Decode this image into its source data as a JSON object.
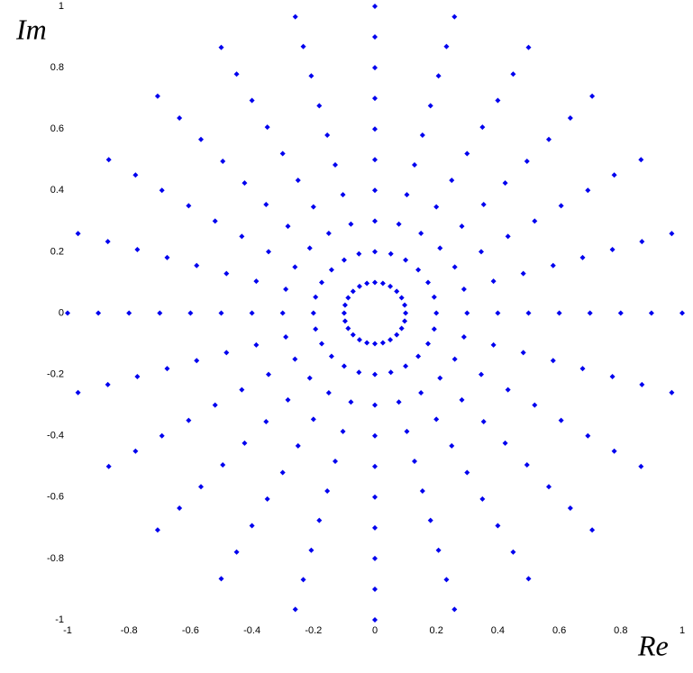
{
  "chart_data": {
    "type": "scatter",
    "x_label": "Re",
    "y_label": "Im",
    "color": "#0000ee",
    "xlim": [
      -1,
      1
    ],
    "ylim": [
      -1,
      1
    ],
    "xticks": [
      -1,
      -0.8,
      -0.6,
      -0.4,
      -0.2,
      0,
      0.2,
      0.4,
      0.6,
      0.8,
      1
    ],
    "yticks": [
      -1,
      -0.8,
      -0.6,
      -0.4,
      -0.2,
      0,
      0.2,
      0.4,
      0.6,
      0.8,
      1
    ],
    "x": [
      0.1,
      0.097,
      0.087,
      0.071,
      0.05,
      0.026,
      0,
      -0.026,
      -0.05,
      -0.071,
      -0.087,
      -0.097,
      -0.1,
      -0.097,
      -0.087,
      -0.071,
      -0.05,
      -0.026,
      0,
      0.026,
      0.05,
      0.071,
      0.087,
      0.097,
      0.2,
      0.193,
      0.173,
      0.141,
      0.1,
      0.052,
      0,
      -0.052,
      -0.1,
      -0.141,
      -0.173,
      -0.193,
      -0.2,
      -0.193,
      -0.173,
      -0.141,
      -0.1,
      -0.052,
      0,
      0.052,
      0.1,
      0.141,
      0.173,
      0.193,
      0.3,
      0.29,
      0.26,
      0.212,
      0.15,
      0.078,
      0,
      -0.078,
      -0.15,
      -0.212,
      -0.26,
      -0.29,
      -0.3,
      -0.29,
      -0.26,
      -0.212,
      -0.15,
      -0.078,
      0,
      0.078,
      0.15,
      0.212,
      0.26,
      0.29,
      0.4,
      0.386,
      0.346,
      0.283,
      0.2,
      0.104,
      0,
      -0.104,
      -0.2,
      -0.283,
      -0.346,
      -0.386,
      -0.4,
      -0.386,
      -0.346,
      -0.283,
      -0.2,
      -0.104,
      0,
      0.104,
      0.2,
      0.283,
      0.346,
      0.386,
      0.5,
      0.483,
      0.433,
      0.354,
      0.25,
      0.129,
      0,
      -0.129,
      -0.25,
      -0.354,
      -0.433,
      -0.483,
      -0.5,
      -0.483,
      -0.433,
      -0.354,
      -0.25,
      -0.129,
      0,
      0.129,
      0.25,
      0.354,
      0.433,
      0.483,
      0.6,
      0.58,
      0.52,
      0.424,
      0.3,
      0.155,
      0,
      -0.155,
      -0.3,
      -0.424,
      -0.52,
      -0.58,
      -0.6,
      -0.58,
      -0.52,
      -0.424,
      -0.3,
      -0.155,
      0,
      0.155,
      0.3,
      0.424,
      0.52,
      0.58,
      0.7,
      0.676,
      0.606,
      0.495,
      0.35,
      0.181,
      0,
      -0.181,
      -0.35,
      -0.495,
      -0.606,
      -0.676,
      -0.7,
      -0.676,
      -0.606,
      -0.495,
      -0.35,
      -0.181,
      0,
      0.181,
      0.35,
      0.495,
      0.606,
      0.676,
      0.8,
      0.773,
      0.693,
      0.566,
      0.4,
      0.207,
      0,
      -0.207,
      -0.4,
      -0.566,
      -0.693,
      -0.773,
      -0.8,
      -0.773,
      -0.693,
      -0.566,
      -0.4,
      -0.207,
      0,
      0.207,
      0.4,
      0.566,
      0.693,
      0.773,
      0.9,
      0.869,
      0.779,
      0.636,
      0.45,
      0.233,
      0,
      -0.233,
      -0.45,
      -0.636,
      -0.779,
      -0.869,
      -0.9,
      -0.869,
      -0.779,
      -0.636,
      -0.45,
      -0.233,
      0,
      0.233,
      0.45,
      0.636,
      0.779,
      0.869,
      1,
      0.966,
      0.866,
      0.707,
      0.5,
      0.259,
      0,
      -0.259,
      -0.5,
      -0.707,
      -0.866,
      -0.966,
      -1,
      -0.966,
      -0.866,
      -0.707,
      -0.5,
      -0.259,
      0,
      0.259,
      0.5,
      0.707,
      0.866,
      0.966
    ],
    "values": [
      0,
      0.026,
      0.05,
      0.071,
      0.087,
      0.097,
      0.1,
      0.097,
      0.087,
      0.071,
      0.05,
      0.026,
      0,
      -0.026,
      -0.05,
      -0.071,
      -0.087,
      -0.097,
      -0.1,
      -0.097,
      -0.087,
      -0.071,
      -0.05,
      -0.026,
      0,
      0.052,
      0.1,
      0.141,
      0.173,
      0.193,
      0.2,
      0.193,
      0.173,
      0.141,
      0.1,
      0.052,
      0,
      -0.052,
      -0.1,
      -0.141,
      -0.173,
      -0.193,
      -0.2,
      -0.193,
      -0.173,
      -0.141,
      -0.1,
      -0.052,
      0,
      0.078,
      0.15,
      0.212,
      0.26,
      0.29,
      0.3,
      0.29,
      0.26,
      0.212,
      0.15,
      0.078,
      0,
      -0.078,
      -0.15,
      -0.212,
      -0.26,
      -0.29,
      -0.3,
      -0.29,
      -0.26,
      -0.212,
      -0.15,
      -0.078,
      0,
      0.104,
      0.2,
      0.283,
      0.346,
      0.386,
      0.4,
      0.386,
      0.346,
      0.283,
      0.2,
      0.104,
      0,
      -0.104,
      -0.2,
      -0.283,
      -0.346,
      -0.386,
      -0.4,
      -0.386,
      -0.346,
      -0.283,
      -0.2,
      -0.104,
      0,
      0.129,
      0.25,
      0.354,
      0.433,
      0.483,
      0.5,
      0.483,
      0.433,
      0.354,
      0.25,
      0.129,
      0,
      -0.129,
      -0.25,
      -0.354,
      -0.433,
      -0.483,
      -0.5,
      -0.483,
      -0.433,
      -0.354,
      -0.25,
      -0.129,
      0,
      0.155,
      0.3,
      0.424,
      0.52,
      0.58,
      0.6,
      0.58,
      0.52,
      0.424,
      0.3,
      0.155,
      0,
      -0.155,
      -0.3,
      -0.424,
      -0.52,
      -0.58,
      -0.6,
      -0.58,
      -0.52,
      -0.424,
      -0.3,
      -0.155,
      0,
      0.181,
      0.35,
      0.495,
      0.606,
      0.676,
      0.7,
      0.676,
      0.606,
      0.495,
      0.35,
      0.181,
      0,
      -0.181,
      -0.35,
      -0.495,
      -0.606,
      -0.676,
      -0.7,
      -0.676,
      -0.606,
      -0.495,
      -0.35,
      -0.181,
      0,
      0.207,
      0.4,
      0.566,
      0.693,
      0.773,
      0.8,
      0.773,
      0.693,
      0.566,
      0.4,
      0.207,
      0,
      -0.207,
      -0.4,
      -0.566,
      -0.693,
      -0.773,
      -0.8,
      -0.773,
      -0.693,
      -0.566,
      -0.4,
      -0.207,
      0,
      0.233,
      0.45,
      0.636,
      0.779,
      0.869,
      0.9,
      0.869,
      0.779,
      0.636,
      0.45,
      0.233,
      0,
      -0.233,
      -0.45,
      -0.636,
      -0.779,
      -0.869,
      -0.9,
      -0.869,
      -0.779,
      -0.636,
      -0.45,
      -0.233,
      0,
      0.259,
      0.5,
      0.707,
      0.866,
      0.966,
      1,
      0.966,
      0.866,
      0.707,
      0.5,
      0.259,
      0,
      -0.259,
      -0.5,
      -0.707,
      -0.866,
      -0.966,
      -1,
      -0.966,
      -0.866,
      -0.707,
      -0.5,
      -0.259
    ]
  }
}
